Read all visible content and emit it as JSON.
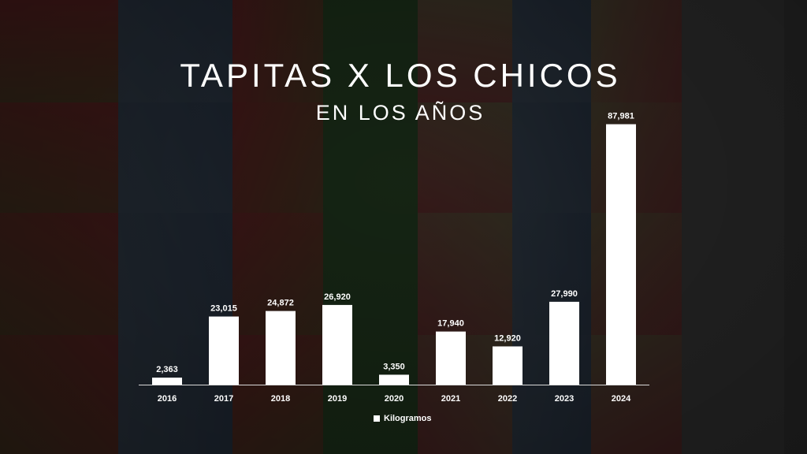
{
  "title": "TAPITAS X LOS CHICOS",
  "subtitle": "EN LOS AÑOS",
  "chart_data": {
    "type": "bar",
    "categories": [
      "2016",
      "2017",
      "2018",
      "2019",
      "2020",
      "2021",
      "2022",
      "2023",
      "2024"
    ],
    "series": [
      {
        "name": "Kilogramos",
        "values": [
          2363,
          23015,
          24872,
          26920,
          3350,
          17940,
          12920,
          27990,
          87981
        ],
        "labels": [
          "2,363",
          "23,015",
          "24,872",
          "26,920",
          "3,350",
          "17,940",
          "12,920",
          "27,990",
          "87,981"
        ],
        "color": "#ffffff"
      }
    ],
    "ylim": [
      0,
      90000
    ],
    "grid": false,
    "legend": "bottom"
  },
  "colors": {
    "bar": "#ffffff",
    "text": "#ffffff",
    "photo_tint": [
      "#7a5b3a",
      "#5b6f86",
      "#a33c3c",
      "#3f6a3a",
      "#8a7a5a",
      "#4a5f7a",
      "#9b4a4a",
      "#6a6a6a"
    ]
  }
}
